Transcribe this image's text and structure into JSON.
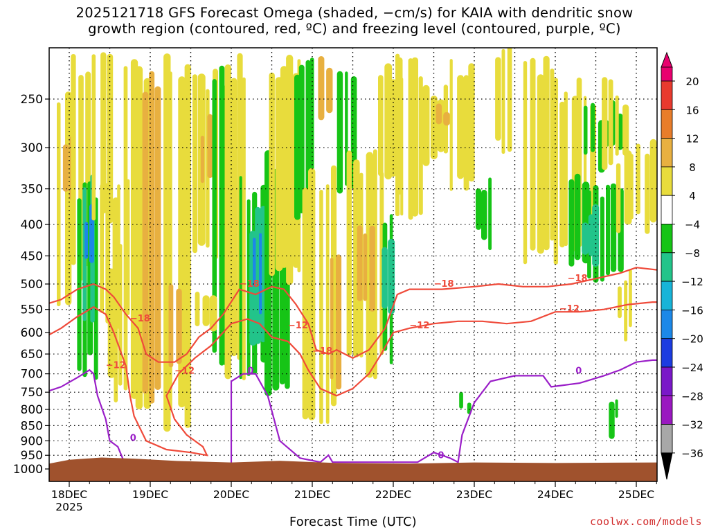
{
  "title_line1": "2025121718 GFS Forecast Omega (shaded, −cm/s) for KAIA with dendritic snow",
  "title_line2": "growth region (contoured, red, ºC) and freezing level (contoured, purple, ºC)",
  "credit": "coolwx.com/models",
  "chart_data": {
    "type": "heatmap",
    "title": "2025121718 GFS Forecast Omega (shaded, −cm/s) for KAIA with dendritic snow growth region (contoured, red, ºC) and freezing level (contoured, purple, ºC)",
    "xlabel": "Forecast Time (UTC)",
    "ylabel": "",
    "x_tick_labels": [
      "18DEC",
      "19DEC",
      "20DEC",
      "21DEC",
      "22DEC",
      "23DEC",
      "24DEC",
      "25DEC"
    ],
    "x_tick_sublabel": "2025",
    "y_tick_labels": [
      "250",
      "300",
      "350",
      "400",
      "450",
      "500",
      "550",
      "600",
      "650",
      "700",
      "750",
      "800",
      "850",
      "900",
      "950",
      "1000"
    ],
    "y_axis_log": true,
    "y_axis_inverted": true,
    "ylim": [
      1050,
      200
    ],
    "grid": true,
    "colorbar": {
      "labels": [
        "20",
        "16",
        "12",
        "8",
        "4",
        "−4",
        "−8",
        "−12",
        "−16",
        "−20",
        "−24",
        "−28",
        "−32",
        "−36"
      ],
      "colors": [
        "#e8006e",
        "#e83a2e",
        "#e87d2a",
        "#e8b040",
        "#e8dc3c",
        "#ffffff",
        "#16c416",
        "#22c48a",
        "#18b4d8",
        "#1c88e8",
        "#1c3ce0",
        "#7a18c8",
        "#9a18c0",
        "#a8a8a8",
        "#000000"
      ]
    },
    "contours": [
      {
        "variable": "temperature",
        "color": "#ef4a3a",
        "levels": [
          -18,
          -12
        ],
        "labels": [
          "−18",
          "−12"
        ]
      },
      {
        "variable": "freezing level",
        "color": "#9a1ec8",
        "levels": [
          0
        ],
        "labels": [
          "0"
        ]
      }
    ],
    "shading_colors": {
      "yellow": "#e8dc3c",
      "orange": "#e8b040",
      "green": "#16c416",
      "teal": "#22c48a",
      "blue": "#1c88e8",
      "ground": "#a0522d"
    }
  }
}
